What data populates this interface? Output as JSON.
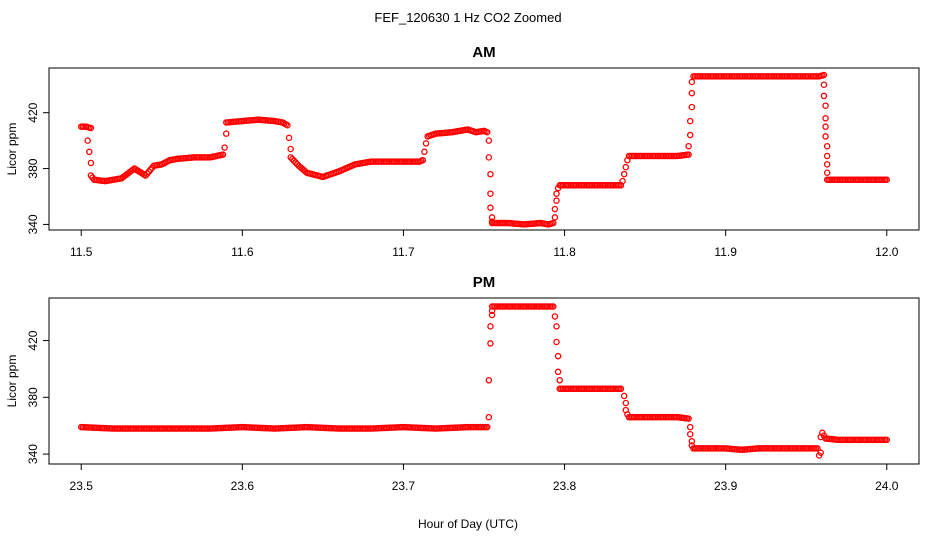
{
  "figure": {
    "title": "FEF_120630  1 Hz CO2 Zoomed",
    "xlabel": "Hour of Day (UTC)"
  },
  "chart_data": [
    {
      "type": "scatter",
      "title": "AM",
      "xlabel": "",
      "ylabel": "Licor ppm",
      "xlim": [
        11.48,
        12.02
      ],
      "ylim": [
        336,
        452
      ],
      "xticks": [
        11.5,
        11.6,
        11.7,
        11.8,
        11.9,
        12.0
      ],
      "xtick_labels": [
        "11.5",
        "11.6",
        "11.7",
        "11.8",
        "11.9",
        "12.0"
      ],
      "yticks": [
        340,
        380,
        420
      ],
      "ytick_labels": [
        "340",
        "380",
        "420"
      ],
      "marker_color": "#ff0000",
      "grid": false,
      "segments": [
        {
          "x": [
            11.5,
            11.503,
            11.506
          ],
          "y": [
            410,
            410,
            409
          ]
        },
        {
          "x": [
            11.506,
            11.508,
            11.515,
            11.525,
            11.533,
            11.54,
            11.545,
            11.55,
            11.555,
            11.56,
            11.57,
            11.58,
            11.588
          ],
          "y": [
            375,
            372,
            371,
            373,
            380,
            375,
            382,
            383,
            386,
            387,
            388,
            388,
            390
          ]
        },
        {
          "x": [
            11.59,
            11.6,
            11.61,
            11.62,
            11.625,
            11.628
          ],
          "y": [
            413,
            414,
            415,
            414,
            413,
            411
          ]
        },
        {
          "x": [
            11.63,
            11.635,
            11.64,
            11.65,
            11.66,
            11.67,
            11.68,
            11.69,
            11.7,
            11.71,
            11.712
          ],
          "y": [
            388,
            382,
            377,
            374,
            378,
            383,
            385,
            385,
            385,
            385,
            386
          ]
        },
        {
          "x": [
            11.715,
            11.72,
            11.73,
            11.74,
            11.745,
            11.75,
            11.752
          ],
          "y": [
            403,
            405,
            406,
            408,
            406,
            407,
            406
          ]
        },
        {
          "x": [
            11.755,
            11.765,
            11.775,
            11.785,
            11.79,
            11.793
          ],
          "y": [
            341,
            341,
            340,
            341,
            340,
            341
          ]
        },
        {
          "x": [
            11.797,
            11.805,
            11.815,
            11.825,
            11.835
          ],
          "y": [
            368,
            368,
            368,
            368,
            368
          ]
        },
        {
          "x": [
            11.84,
            11.85,
            11.86,
            11.87,
            11.877
          ],
          "y": [
            389,
            389,
            389,
            389,
            390
          ]
        },
        {
          "x": [
            11.88,
            11.89,
            11.9,
            11.91,
            11.92,
            11.93,
            11.94,
            11.95,
            11.958,
            11.961
          ],
          "y": [
            446,
            446,
            446,
            446,
            446,
            446,
            446,
            446,
            446,
            447
          ]
        },
        {
          "x": [
            11.963,
            11.97,
            11.98,
            11.99,
            12.0
          ],
          "y": [
            372,
            372,
            372,
            372,
            372
          ]
        }
      ],
      "transitions": [
        {
          "x": [
            11.504,
            11.505,
            11.506
          ],
          "y": [
            400,
            392,
            384
          ]
        },
        {
          "x": [
            11.589,
            11.59
          ],
          "y": [
            395,
            405
          ]
        },
        {
          "x": [
            11.629,
            11.63
          ],
          "y": [
            402,
            394
          ]
        },
        {
          "x": [
            11.713,
            11.714
          ],
          "y": [
            392,
            398
          ]
        },
        {
          "x": [
            11.753,
            11.753,
            11.754,
            11.754,
            11.754,
            11.755,
            11.755
          ],
          "y": [
            400,
            388,
            376,
            362,
            352,
            345,
            342
          ]
        },
        {
          "x": [
            11.794,
            11.794,
            11.795,
            11.795,
            11.796
          ],
          "y": [
            345,
            351,
            357,
            362,
            366
          ]
        },
        {
          "x": [
            11.836,
            11.837,
            11.838,
            11.839
          ],
          "y": [
            371,
            376,
            381,
            386
          ]
        },
        {
          "x": [
            11.877,
            11.878,
            11.878,
            11.879,
            11.879,
            11.879
          ],
          "y": [
            396,
            404,
            414,
            424,
            434,
            442
          ]
        },
        {
          "x": [
            11.961,
            11.961,
            11.962,
            11.962,
            11.962,
            11.962,
            11.963,
            11.963,
            11.963,
            11.963
          ],
          "y": [
            440,
            432,
            425,
            416,
            410,
            403,
            396,
            389,
            383,
            377
          ]
        }
      ]
    },
    {
      "type": "scatter",
      "title": "PM",
      "xlabel": "",
      "ylabel": "Licor ppm",
      "xlim": [
        23.48,
        24.02
      ],
      "ylim": [
        333,
        450
      ],
      "xticks": [
        23.5,
        23.6,
        23.7,
        23.8,
        23.9,
        24.0
      ],
      "xtick_labels": [
        "23.5",
        "23.6",
        "23.7",
        "23.8",
        "23.9",
        "24.0"
      ],
      "yticks": [
        340,
        380,
        420
      ],
      "ytick_labels": [
        "340",
        "380",
        "420"
      ],
      "marker_color": "#ff0000",
      "grid": false,
      "segments": [
        {
          "x": [
            23.5,
            23.52,
            23.54,
            23.56,
            23.58,
            23.6,
            23.62,
            23.64,
            23.66,
            23.68,
            23.7,
            23.72,
            23.74,
            23.752
          ],
          "y": [
            359,
            358,
            358,
            358,
            358,
            359,
            358,
            359,
            358,
            358,
            359,
            358,
            359,
            359
          ]
        },
        {
          "x": [
            23.755,
            23.765,
            23.775,
            23.785,
            23.793
          ],
          "y": [
            444,
            444,
            444,
            444,
            444
          ]
        },
        {
          "x": [
            23.797,
            23.805,
            23.815,
            23.825,
            23.835
          ],
          "y": [
            386,
            386,
            386,
            386,
            386
          ]
        },
        {
          "x": [
            23.84,
            23.85,
            23.86,
            23.87,
            23.877
          ],
          "y": [
            366,
            366,
            366,
            366,
            365
          ]
        },
        {
          "x": [
            23.88,
            23.89,
            23.9,
            23.91,
            23.92,
            23.93,
            23.94,
            23.95,
            23.957
          ],
          "y": [
            344,
            344,
            344,
            343,
            344,
            344,
            344,
            344,
            344
          ]
        },
        {
          "x": [
            23.96,
            23.961,
            23.962,
            23.97,
            23.98,
            23.99,
            24.0
          ],
          "y": [
            355,
            353,
            351,
            350,
            350,
            350,
            350
          ]
        }
      ],
      "transitions": [
        {
          "x": [
            23.753,
            23.753,
            23.754,
            23.754,
            23.755,
            23.755
          ],
          "y": [
            366,
            392,
            418,
            430,
            438,
            441
          ]
        },
        {
          "x": [
            23.794,
            23.795,
            23.795,
            23.796,
            23.796,
            23.797
          ],
          "y": [
            437,
            430,
            419,
            409,
            398,
            392
          ]
        },
        {
          "x": [
            23.837,
            23.838,
            23.838,
            23.839
          ],
          "y": [
            381,
            376,
            371,
            368
          ]
        },
        {
          "x": [
            23.878,
            23.878,
            23.879,
            23.879
          ],
          "y": [
            359,
            354,
            349,
            346
          ]
        },
        {
          "x": [
            23.958,
            23.959,
            23.959
          ],
          "y": [
            339,
            341,
            352
          ]
        }
      ]
    }
  ]
}
